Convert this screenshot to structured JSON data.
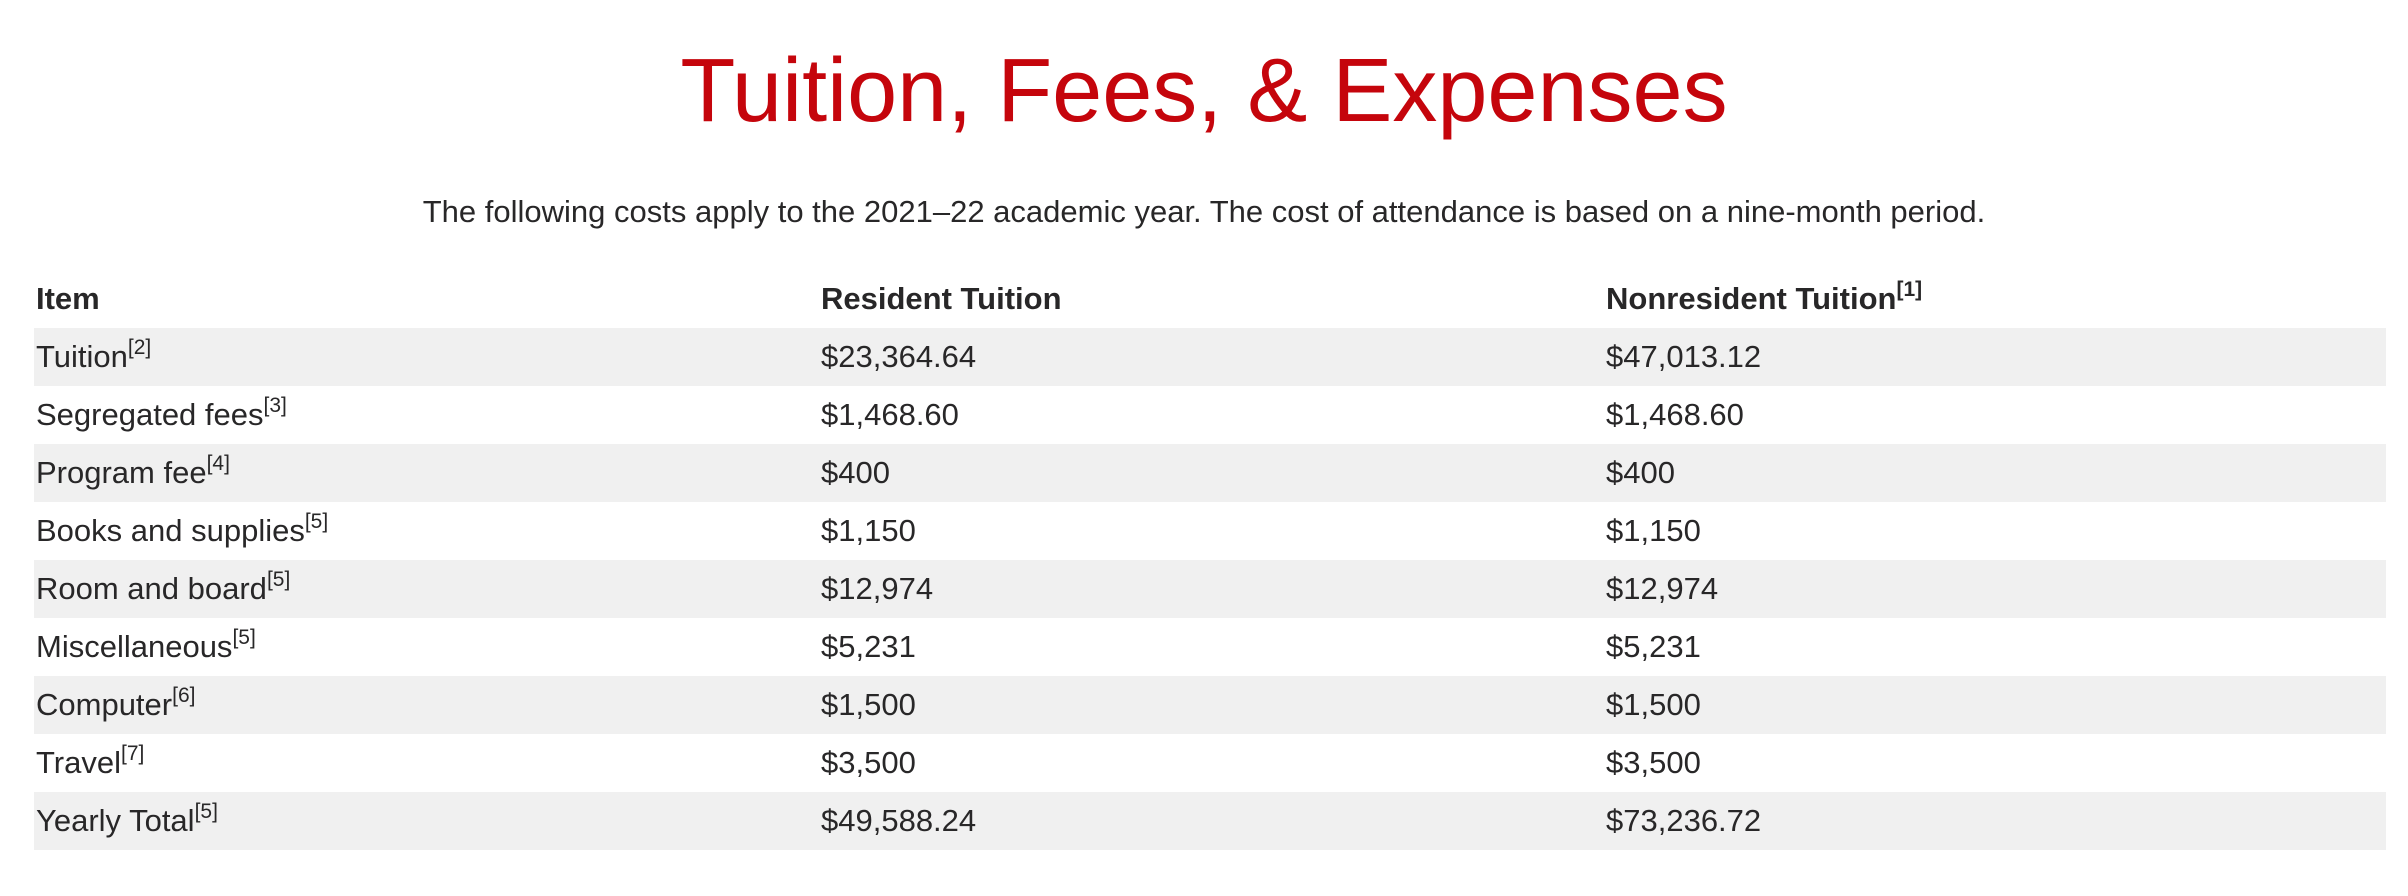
{
  "page": {
    "title": "Tuition, Fees, & Expenses",
    "intro": "The following costs apply to the 2021–22 academic year. The cost of attendance is based on a nine-month period."
  },
  "table": {
    "headers": [
      {
        "label": "Item",
        "note": ""
      },
      {
        "label": "Resident Tuition",
        "note": ""
      },
      {
        "label": "Nonresident Tuition",
        "note": "[1]"
      }
    ],
    "rows": [
      {
        "item": "Tuition",
        "note": "[2]",
        "resident": "$23,364.64",
        "nonresident": "$47,013.12"
      },
      {
        "item": "Segregated fees",
        "note": "[3]",
        "resident": "$1,468.60",
        "nonresident": "$1,468.60"
      },
      {
        "item": "Program fee",
        "note": "[4]",
        "resident": "$400",
        "nonresident": "$400"
      },
      {
        "item": "Books and supplies",
        "note": "[5]",
        "resident": "$1,150",
        "nonresident": "$1,150"
      },
      {
        "item": "Room and board",
        "note": "[5]",
        "resident": "$12,974",
        "nonresident": "$12,974"
      },
      {
        "item": "Miscellaneous",
        "note": "[5]",
        "resident": "$5,231",
        "nonresident": "$5,231"
      },
      {
        "item": "Computer",
        "note": "[6]",
        "resident": "$1,500",
        "nonresident": "$1,500"
      },
      {
        "item": "Travel",
        "note": "[7]",
        "resident": "$3,500",
        "nonresident": "$3,500"
      },
      {
        "item": "Yearly Total",
        "note": "[5]",
        "resident": "$49,588.24",
        "nonresident": "$73,236.72"
      }
    ]
  },
  "colors": {
    "title": "#c5050c",
    "text": "#282728",
    "stripe": "#f0f0f0"
  }
}
